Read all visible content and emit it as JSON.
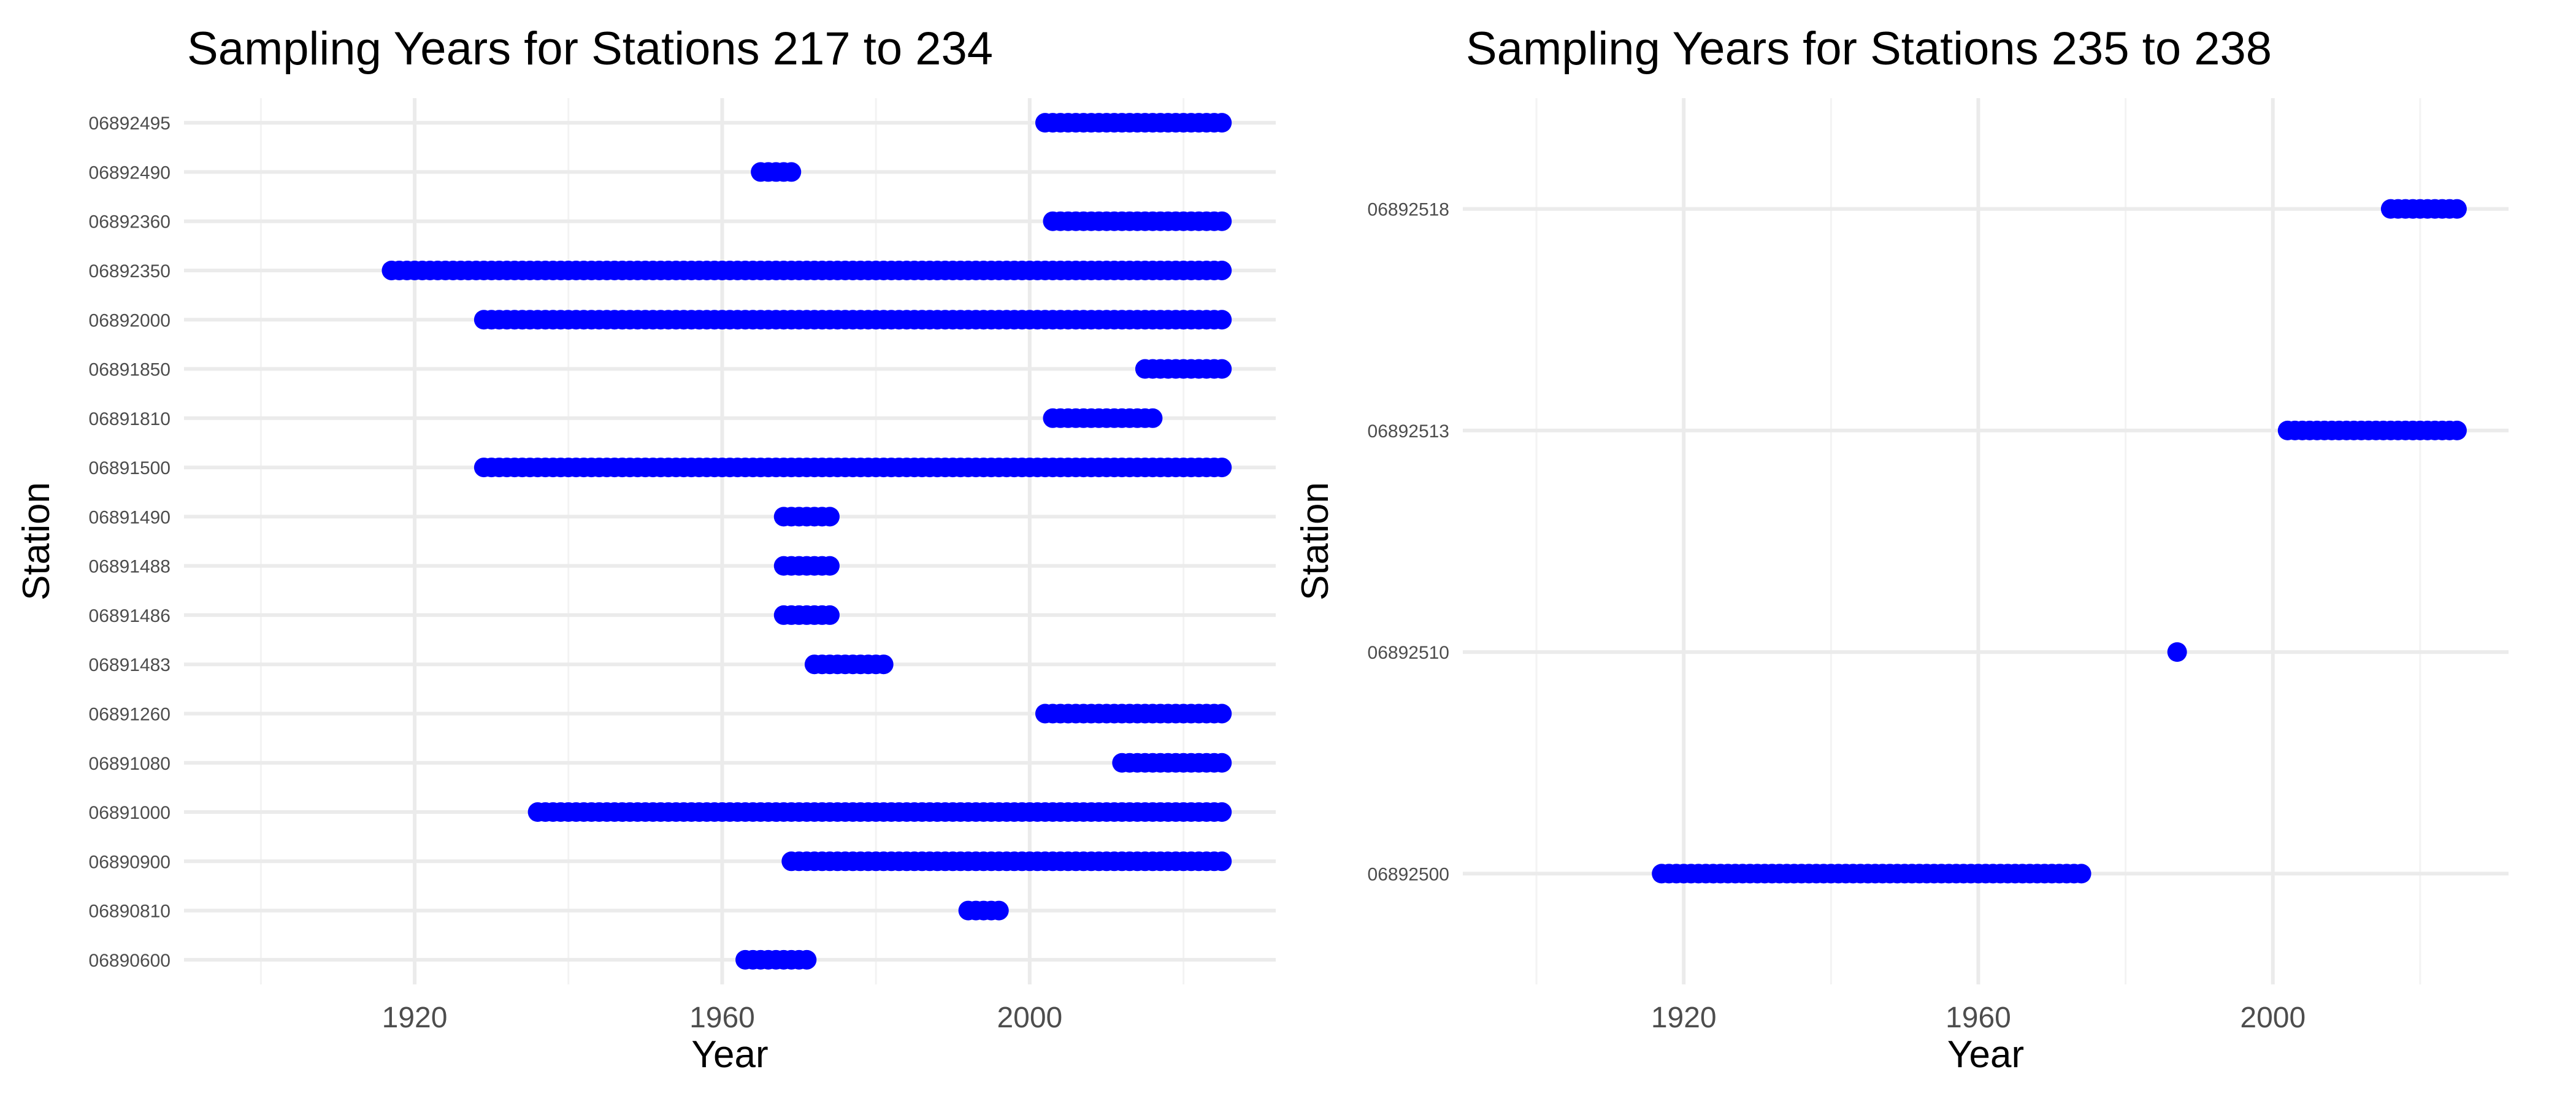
{
  "chart_data": [
    {
      "type": "scatter",
      "title": "Sampling Years for Stations 217 to 234",
      "xlabel": "Year",
      "ylabel": "Station",
      "xlim": [
        1890,
        2032
      ],
      "xticks": [
        1920,
        1960,
        2000
      ],
      "grid": true,
      "legend": "none",
      "color": "#0000ff",
      "categories": [
        "06890600",
        "06890810",
        "06890900",
        "06891000",
        "06891080",
        "06891260",
        "06891483",
        "06891486",
        "06891488",
        "06891490",
        "06891500",
        "06891810",
        "06891850",
        "06892000",
        "06892350",
        "06892360",
        "06892490",
        "06892495"
      ],
      "ranges": [
        {
          "station": "06890600",
          "start": 1963,
          "end": 1971
        },
        {
          "station": "06890810",
          "start": 1992,
          "end": 1996
        },
        {
          "station": "06890900",
          "start": 1969,
          "end": 2025
        },
        {
          "station": "06891000",
          "start": 1936,
          "end": 2025
        },
        {
          "station": "06891080",
          "start": 2012,
          "end": 2025
        },
        {
          "station": "06891260",
          "start": 2002,
          "end": 2025
        },
        {
          "station": "06891483",
          "start": 1972,
          "end": 1981
        },
        {
          "station": "06891486",
          "start": 1968,
          "end": 1974
        },
        {
          "station": "06891488",
          "start": 1968,
          "end": 1974
        },
        {
          "station": "06891490",
          "start": 1968,
          "end": 1974
        },
        {
          "station": "06891500",
          "start": 1929,
          "end": 2025
        },
        {
          "station": "06891810",
          "start": 2003,
          "end": 2016
        },
        {
          "station": "06891850",
          "start": 2015,
          "end": 2025
        },
        {
          "station": "06892000",
          "start": 1929,
          "end": 2025
        },
        {
          "station": "06892350",
          "start": 1917,
          "end": 2025
        },
        {
          "station": "06892360",
          "start": 2003,
          "end": 2025
        },
        {
          "station": "06892490",
          "start": 1965,
          "end": 1969
        },
        {
          "station": "06892495",
          "start": 2002,
          "end": 2025
        }
      ]
    },
    {
      "type": "scatter",
      "title": "Sampling Years for Stations 235 to 238",
      "xlabel": "Year",
      "ylabel": "Station",
      "xlim": [
        1890,
        2032
      ],
      "xticks": [
        1920,
        1960,
        2000
      ],
      "grid": true,
      "legend": "none",
      "color": "#0000ff",
      "categories": [
        "06892500",
        "06892510",
        "06892513",
        "06892518"
      ],
      "ranges": [
        {
          "station": "06892500",
          "start": 1917,
          "end": 1974
        },
        {
          "station": "06892510",
          "start": 1987,
          "end": 1987
        },
        {
          "station": "06892513",
          "start": 2002,
          "end": 2025
        },
        {
          "station": "06892518",
          "start": 2016,
          "end": 2025
        }
      ]
    }
  ]
}
